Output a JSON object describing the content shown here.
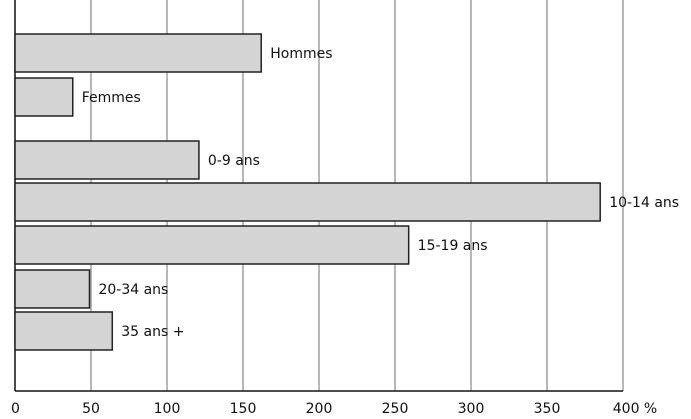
{
  "chart_data": {
    "type": "bar",
    "orientation": "horizontal",
    "title": "",
    "xlabel": "",
    "ylabel": "",
    "categories": [
      "Hommes",
      "Femmes",
      "0-9 ans",
      "10-14 ans",
      "15-19 ans",
      "20-34 ans",
      "35 ans +"
    ],
    "values": [
      162,
      38,
      121,
      385,
      259,
      49,
      64
    ],
    "xlim": [
      0,
      400
    ],
    "x_ticks": [
      0,
      50,
      100,
      150,
      200,
      250,
      300,
      350,
      400
    ],
    "x_tick_labels": [
      "0",
      "50",
      "100",
      "150",
      "200",
      "250",
      "300",
      "350",
      "400 %"
    ],
    "grid": "vertical",
    "legend": "none",
    "bar_color": "#d4d4d4",
    "bar_edge_color": "#222222",
    "grid_color": "#888888"
  }
}
